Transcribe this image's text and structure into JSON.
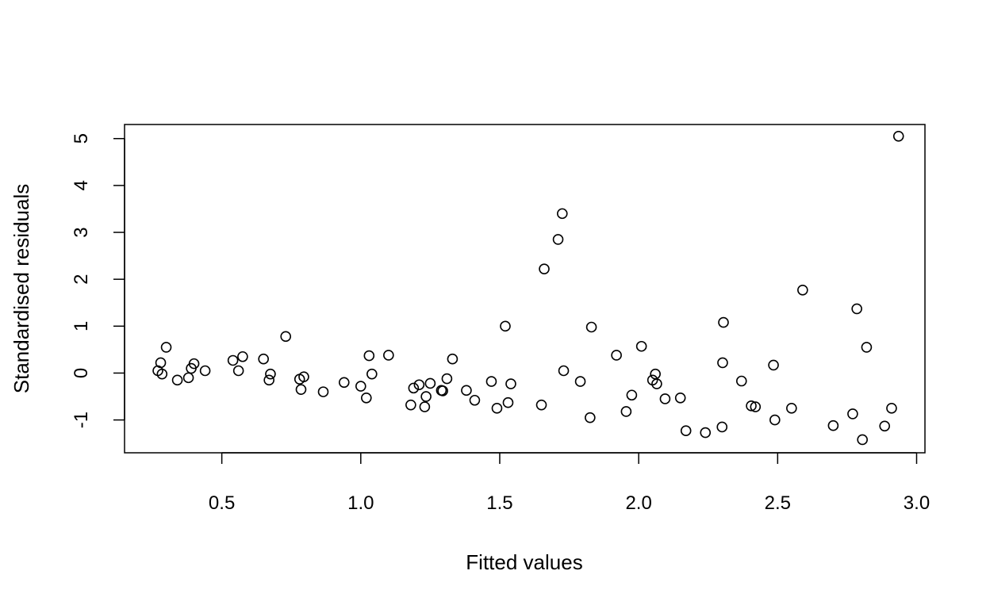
{
  "chart_data": {
    "type": "scatter",
    "title": "",
    "xlabel": "Fitted values",
    "ylabel": "Standardised residuals",
    "xlim": [
      0.15,
      3.03
    ],
    "ylim": [
      -1.7,
      5.3
    ],
    "x_ticks": [
      0.5,
      1.0,
      1.5,
      2.0,
      2.5,
      3.0
    ],
    "x_tick_labels": [
      "0.5",
      "1.0",
      "1.5",
      "2.0",
      "2.5",
      "3.0"
    ],
    "y_ticks": [
      -1,
      0,
      1,
      2,
      3,
      4,
      5
    ],
    "y_tick_labels": [
      "-1",
      "0",
      "1",
      "2",
      "3",
      "4",
      "5"
    ],
    "grid": false,
    "legend": "none",
    "marker": "open-circle",
    "color": "#000000",
    "points": [
      {
        "x": 0.27,
        "y": 0.05
      },
      {
        "x": 0.28,
        "y": 0.22
      },
      {
        "x": 0.285,
        "y": -0.02
      },
      {
        "x": 0.3,
        "y": 0.55
      },
      {
        "x": 0.34,
        "y": -0.15
      },
      {
        "x": 0.38,
        "y": -0.1
      },
      {
        "x": 0.39,
        "y": 0.1
      },
      {
        "x": 0.4,
        "y": 0.2
      },
      {
        "x": 0.44,
        "y": 0.05
      },
      {
        "x": 0.54,
        "y": 0.27
      },
      {
        "x": 0.56,
        "y": 0.05
      },
      {
        "x": 0.575,
        "y": 0.35
      },
      {
        "x": 0.65,
        "y": 0.3
      },
      {
        "x": 0.67,
        "y": -0.15
      },
      {
        "x": 0.675,
        "y": -0.02
      },
      {
        "x": 0.73,
        "y": 0.78
      },
      {
        "x": 0.78,
        "y": -0.13
      },
      {
        "x": 0.785,
        "y": -0.35
      },
      {
        "x": 0.795,
        "y": -0.08
      },
      {
        "x": 0.865,
        "y": -0.4
      },
      {
        "x": 0.94,
        "y": -0.2
      },
      {
        "x": 1.0,
        "y": -0.28
      },
      {
        "x": 1.02,
        "y": -0.53
      },
      {
        "x": 1.03,
        "y": 0.37
      },
      {
        "x": 1.04,
        "y": -0.02
      },
      {
        "x": 1.1,
        "y": 0.38
      },
      {
        "x": 1.18,
        "y": -0.68
      },
      {
        "x": 1.19,
        "y": -0.32
      },
      {
        "x": 1.21,
        "y": -0.25
      },
      {
        "x": 1.23,
        "y": -0.72
      },
      {
        "x": 1.235,
        "y": -0.5
      },
      {
        "x": 1.25,
        "y": -0.22
      },
      {
        "x": 1.29,
        "y": -0.37
      },
      {
        "x": 1.295,
        "y": -0.38
      },
      {
        "x": 1.31,
        "y": -0.12
      },
      {
        "x": 1.33,
        "y": 0.3
      },
      {
        "x": 1.38,
        "y": -0.37
      },
      {
        "x": 1.41,
        "y": -0.58
      },
      {
        "x": 1.47,
        "y": -0.18
      },
      {
        "x": 1.49,
        "y": -0.75
      },
      {
        "x": 1.52,
        "y": 1.0
      },
      {
        "x": 1.53,
        "y": -0.63
      },
      {
        "x": 1.54,
        "y": -0.23
      },
      {
        "x": 1.65,
        "y": -0.68
      },
      {
        "x": 1.66,
        "y": 2.22
      },
      {
        "x": 1.71,
        "y": 2.85
      },
      {
        "x": 1.725,
        "y": 3.4
      },
      {
        "x": 1.73,
        "y": 0.05
      },
      {
        "x": 1.79,
        "y": -0.18
      },
      {
        "x": 1.825,
        "y": -0.95
      },
      {
        "x": 1.83,
        "y": 0.98
      },
      {
        "x": 1.92,
        "y": 0.38
      },
      {
        "x": 1.955,
        "y": -0.82
      },
      {
        "x": 1.975,
        "y": -0.47
      },
      {
        "x": 2.01,
        "y": 0.57
      },
      {
        "x": 2.05,
        "y": -0.15
      },
      {
        "x": 2.06,
        "y": -0.02
      },
      {
        "x": 2.065,
        "y": -0.23
      },
      {
        "x": 2.095,
        "y": -0.55
      },
      {
        "x": 2.15,
        "y": -0.53
      },
      {
        "x": 2.17,
        "y": -1.23
      },
      {
        "x": 2.24,
        "y": -1.27
      },
      {
        "x": 2.3,
        "y": -1.15
      },
      {
        "x": 2.302,
        "y": 0.22
      },
      {
        "x": 2.305,
        "y": 1.08
      },
      {
        "x": 2.37,
        "y": -0.17
      },
      {
        "x": 2.405,
        "y": -0.7
      },
      {
        "x": 2.42,
        "y": -0.72
      },
      {
        "x": 2.485,
        "y": 0.17
      },
      {
        "x": 2.49,
        "y": -1.0
      },
      {
        "x": 2.55,
        "y": -0.75
      },
      {
        "x": 2.59,
        "y": 1.77
      },
      {
        "x": 2.7,
        "y": -1.12
      },
      {
        "x": 2.77,
        "y": -0.87
      },
      {
        "x": 2.785,
        "y": 1.37
      },
      {
        "x": 2.805,
        "y": -1.42
      },
      {
        "x": 2.82,
        "y": 0.55
      },
      {
        "x": 2.885,
        "y": -1.13
      },
      {
        "x": 2.91,
        "y": -0.75
      },
      {
        "x": 2.935,
        "y": 5.05
      }
    ]
  }
}
